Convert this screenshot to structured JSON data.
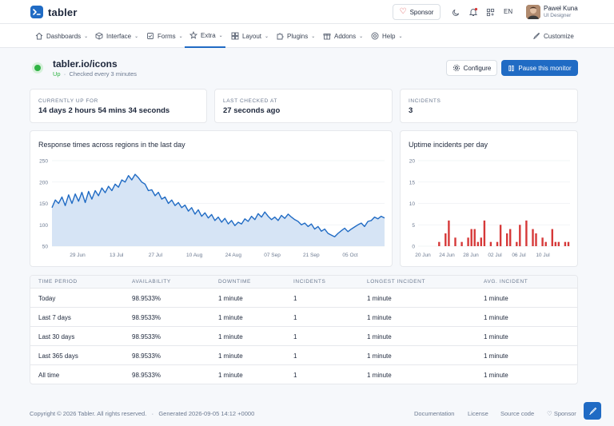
{
  "brand": {
    "name": "tabler"
  },
  "header": {
    "sponsor_label": "Sponsor",
    "lang": "EN",
    "user": {
      "name": "Paweł Kuna",
      "role": "UI Designer"
    }
  },
  "nav": {
    "items": [
      {
        "label": "Dashboards",
        "icon": "home-icon"
      },
      {
        "label": "Interface",
        "icon": "package-icon"
      },
      {
        "label": "Forms",
        "icon": "checkbox-icon"
      },
      {
        "label": "Extra",
        "icon": "star-icon"
      },
      {
        "label": "Layout",
        "icon": "layout-icon"
      },
      {
        "label": "Plugins",
        "icon": "puzzle-icon"
      },
      {
        "label": "Addons",
        "icon": "gift-icon"
      },
      {
        "label": "Help",
        "icon": "lifebuoy-icon"
      }
    ],
    "customize_label": "Customize"
  },
  "monitor": {
    "title": "tabler.io/icons",
    "status": "Up",
    "separator": "·",
    "check_interval": "Checked every 3 minutes",
    "configure_label": "Configure",
    "pause_label": "Pause this monitor",
    "status_color": "#2fb344"
  },
  "stats": [
    {
      "label": "Currently up for",
      "value": "14 days 2 hours 54 mins 34 seconds"
    },
    {
      "label": "Last checked at",
      "value": "27 seconds ago"
    },
    {
      "label": "Incidents",
      "value": "3"
    }
  ],
  "chart_data": [
    {
      "type": "area",
      "title": "Response times across regions in the last day",
      "ylim": [
        50,
        250
      ],
      "yticks": [
        "250",
        "200",
        "150",
        "100",
        "50"
      ],
      "xticks": [
        "29 Jun",
        "13 Jul",
        "27 Jul",
        "10 Aug",
        "24 Aug",
        "07 Sep",
        "21 Sep",
        "05 Oct"
      ],
      "color": "#206bc4",
      "values": [
        140,
        158,
        150,
        165,
        145,
        170,
        150,
        172,
        155,
        176,
        152,
        178,
        160,
        180,
        168,
        186,
        175,
        190,
        180,
        195,
        188,
        205,
        200,
        215,
        205,
        218,
        210,
        200,
        195,
        180,
        182,
        168,
        176,
        160,
        165,
        150,
        158,
        145,
        152,
        140,
        146,
        132,
        140,
        125,
        135,
        120,
        128,
        116,
        124,
        110,
        118,
        106,
        115,
        102,
        110,
        98,
        106,
        102,
        114,
        108,
        120,
        112,
        126,
        118,
        130,
        120,
        112,
        118,
        110,
        122,
        115,
        125,
        118,
        112,
        108,
        100,
        104,
        96,
        102,
        90,
        96,
        85,
        90,
        80,
        76,
        72,
        80,
        86,
        92,
        84,
        90,
        95,
        100,
        104,
        96,
        108,
        110,
        118,
        114,
        120,
        116
      ]
    },
    {
      "type": "bar",
      "title": "Uptime incidents per day",
      "ylim": [
        0,
        20
      ],
      "yticks": [
        "20",
        "15",
        "10",
        "5",
        "0"
      ],
      "xticks": [
        "20 Jun",
        "24 Jun",
        "28 Jun",
        "02 Jul",
        "06 Jul",
        "10 Jul"
      ],
      "color": "#d63939",
      "values": [
        0,
        0,
        0,
        0,
        0,
        0,
        1,
        0,
        3,
        6,
        0,
        2,
        0,
        1,
        0,
        2,
        4,
        4,
        1,
        2,
        6,
        0,
        1,
        0,
        1,
        5,
        0,
        3,
        4,
        0,
        1,
        5,
        0,
        6,
        0,
        4,
        3,
        0,
        2,
        1,
        0,
        4,
        1,
        1,
        0,
        1,
        1
      ]
    }
  ],
  "table": {
    "headers": [
      "Time period",
      "Availability",
      "Downtime",
      "Incidents",
      "Longest incident",
      "Avg. incident"
    ],
    "rows": [
      [
        "Today",
        "98.9533%",
        "1 minute",
        "1",
        "1 minute",
        "1 minute"
      ],
      [
        "Last 7 days",
        "98.9533%",
        "1 minute",
        "1",
        "1 minute",
        "1 minute"
      ],
      [
        "Last 30 days",
        "98.9533%",
        "1 minute",
        "1",
        "1 minute",
        "1 minute"
      ],
      [
        "Last 365 days",
        "98.9533%",
        "1 minute",
        "1",
        "1 minute",
        "1 minute"
      ],
      [
        "All time",
        "98.9533%",
        "1 minute",
        "1",
        "1 minute",
        "1 minute"
      ]
    ]
  },
  "footer": {
    "copyright": "Copyright © 2026 Tabler. All rights reserved.",
    "separator": "·",
    "generated": "Generated 2026-09-05 14:12 +0000",
    "links": [
      "Documentation",
      "License",
      "Source code",
      "Sponsor"
    ]
  }
}
